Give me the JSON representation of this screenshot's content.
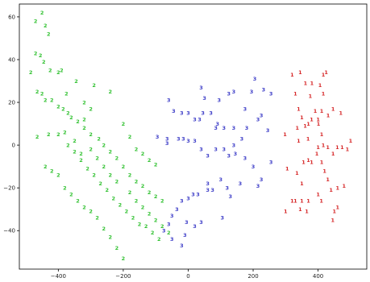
{
  "chart_data": {
    "type": "scatter",
    "title": "",
    "xlabel": "",
    "ylabel": "",
    "xlim": [
      -520,
      550
    ],
    "ylim": [
      -58,
      66
    ],
    "xticks": [
      -400,
      -200,
      0,
      200,
      400
    ],
    "yticks": [
      -40,
      -20,
      0,
      20,
      40,
      60
    ],
    "grid": false,
    "legend": "none",
    "series": [
      {
        "marker": "1",
        "color": "#d62728",
        "points": [
          [
            298,
            5
          ],
          [
            320,
            33
          ],
          [
            330,
            24
          ],
          [
            340,
            17
          ],
          [
            350,
            13
          ],
          [
            370,
            10
          ],
          [
            345,
            34
          ],
          [
            361,
            29
          ],
          [
            381,
            29
          ],
          [
            376,
            23
          ],
          [
            406,
            28
          ],
          [
            416,
            24
          ],
          [
            411,
            16
          ],
          [
            401,
            10
          ],
          [
            431,
            14
          ],
          [
            446,
            17
          ],
          [
            391,
            16
          ],
          [
            360,
            9
          ],
          [
            340,
            2
          ],
          [
            369,
            3
          ],
          [
            400,
            -1
          ],
          [
            411,
            5
          ],
          [
            416,
            0
          ],
          [
            430,
            -1
          ],
          [
            446,
            -4
          ],
          [
            459,
            -1
          ],
          [
            474,
            -1
          ],
          [
            490,
            -2
          ],
          [
            500,
            2
          ],
          [
            470,
            15
          ],
          [
            305,
            -11
          ],
          [
            335,
            -13
          ],
          [
            350,
            -18
          ],
          [
            355,
            -8
          ],
          [
            370,
            -7
          ],
          [
            380,
            -8
          ],
          [
            396,
            -4
          ],
          [
            411,
            -8
          ],
          [
            420,
            -12
          ],
          [
            430,
            -16
          ],
          [
            440,
            -21
          ],
          [
            460,
            -20
          ],
          [
            480,
            -19
          ],
          [
            460,
            -29
          ],
          [
            400,
            -23
          ],
          [
            330,
            -26
          ],
          [
            350,
            -26
          ],
          [
            370,
            -26
          ],
          [
            410,
            -26
          ],
          [
            450,
            -31
          ],
          [
            445,
            -35
          ],
          [
            300,
            -31
          ],
          [
            320,
            -26
          ],
          [
            345,
            -30
          ],
          [
            365,
            -31
          ],
          [
            425,
            34
          ],
          [
            416,
            33
          ],
          [
            400,
            12
          ],
          [
            380,
            12
          ],
          [
            336,
            8
          ]
        ]
      },
      {
        "marker": "3",
        "color": "#3f3fc8",
        "points": [
          [
            40,
            27
          ],
          [
            95,
            21
          ],
          [
            125,
            24
          ],
          [
            140,
            25
          ],
          [
            175,
            17
          ],
          [
            195,
            25
          ],
          [
            205,
            31
          ],
          [
            232,
            26
          ],
          [
            255,
            24
          ],
          [
            215,
            12
          ],
          [
            225,
            14
          ],
          [
            245,
            7
          ],
          [
            180,
            8
          ],
          [
            165,
            3
          ],
          [
            140,
            8
          ],
          [
            110,
            8
          ],
          [
            90,
            10
          ],
          [
            70,
            15
          ],
          [
            50,
            22
          ],
          [
            45,
            15
          ],
          [
            35,
            12
          ],
          [
            20,
            12
          ],
          [
            0,
            15
          ],
          [
            -20,
            15
          ],
          [
            -60,
            21
          ],
          [
            -45,
            16
          ],
          [
            -95,
            4
          ],
          [
            -65,
            3
          ],
          [
            -30,
            3
          ],
          [
            -15,
            3
          ],
          [
            0,
            2
          ],
          [
            20,
            2
          ],
          [
            40,
            -2
          ],
          [
            60,
            -5
          ],
          [
            85,
            -2
          ],
          [
            110,
            -2
          ],
          [
            125,
            -5
          ],
          [
            140,
            0
          ],
          [
            145,
            -4
          ],
          [
            175,
            -6
          ],
          [
            200,
            -10
          ],
          [
            225,
            -16
          ],
          [
            255,
            -8
          ],
          [
            215,
            -19
          ],
          [
            100,
            -16
          ],
          [
            120,
            -20
          ],
          [
            160,
            -18
          ],
          [
            130,
            -24
          ],
          [
            60,
            -18
          ],
          [
            30,
            -23
          ],
          [
            15,
            -23
          ],
          [
            0,
            -25
          ],
          [
            -20,
            -26
          ],
          [
            -35,
            -30
          ],
          [
            -50,
            -33
          ],
          [
            -60,
            -37
          ],
          [
            -75,
            -40
          ],
          [
            -50,
            -44
          ],
          [
            -20,
            -47
          ],
          [
            -10,
            -42
          ],
          [
            -5,
            -36
          ],
          [
            20,
            -38
          ],
          [
            40,
            -36
          ],
          [
            60,
            -21
          ],
          [
            75,
            -21
          ],
          [
            105,
            -34
          ],
          [
            -65,
            1
          ],
          [
            85,
            8
          ]
        ]
      },
      {
        "marker": "2",
        "color": "#33c233",
        "points": [
          [
            -450,
            62
          ],
          [
            -470,
            58
          ],
          [
            -440,
            56
          ],
          [
            -430,
            52
          ],
          [
            -470,
            43
          ],
          [
            -455,
            42
          ],
          [
            -445,
            39
          ],
          [
            -425,
            35
          ],
          [
            -400,
            34
          ],
          [
            -390,
            35
          ],
          [
            -485,
            34
          ],
          [
            -465,
            25
          ],
          [
            -450,
            24
          ],
          [
            -440,
            21
          ],
          [
            -420,
            21
          ],
          [
            -400,
            18
          ],
          [
            -385,
            17
          ],
          [
            -370,
            15
          ],
          [
            -360,
            13
          ],
          [
            -340,
            11
          ],
          [
            -320,
            8
          ],
          [
            -300,
            5
          ],
          [
            -275,
            3
          ],
          [
            -260,
            0
          ],
          [
            -240,
            -3
          ],
          [
            -220,
            -6
          ],
          [
            -200,
            -10
          ],
          [
            -180,
            -14
          ],
          [
            -160,
            -17
          ],
          [
            -140,
            -19
          ],
          [
            -120,
            -22
          ],
          [
            -100,
            -24
          ],
          [
            -80,
            -26
          ],
          [
            -380,
            6
          ],
          [
            -400,
            5
          ],
          [
            -430,
            5
          ],
          [
            -465,
            4
          ],
          [
            -370,
            0
          ],
          [
            -350,
            -3
          ],
          [
            -330,
            -7
          ],
          [
            -310,
            -11
          ],
          [
            -290,
            -14
          ],
          [
            -270,
            -18
          ],
          [
            -250,
            -21
          ],
          [
            -230,
            -25
          ],
          [
            -210,
            -28
          ],
          [
            -190,
            -31
          ],
          [
            -170,
            -34
          ],
          [
            -150,
            -37
          ],
          [
            -130,
            -38
          ],
          [
            -110,
            -41
          ],
          [
            -90,
            -44
          ],
          [
            -380,
            -20
          ],
          [
            -360,
            -23
          ],
          [
            -340,
            -26
          ],
          [
            -320,
            -29
          ],
          [
            -300,
            -31
          ],
          [
            -280,
            -34
          ],
          [
            -260,
            -39
          ],
          [
            -240,
            -43
          ],
          [
            -220,
            -48
          ],
          [
            -200,
            -53
          ],
          [
            -440,
            -10
          ],
          [
            -420,
            -12
          ],
          [
            -400,
            -14
          ],
          [
            -320,
            20
          ],
          [
            -290,
            28
          ],
          [
            -240,
            25
          ],
          [
            -200,
            10
          ],
          [
            -180,
            4
          ],
          [
            -160,
            -2
          ],
          [
            -140,
            -4
          ],
          [
            -120,
            -7
          ],
          [
            -100,
            -9
          ],
          [
            -300,
            -2
          ],
          [
            -280,
            -6
          ],
          [
            -260,
            -10
          ],
          [
            -240,
            -14
          ],
          [
            -220,
            -17
          ],
          [
            -180,
            -22
          ],
          [
            -160,
            -26
          ],
          [
            -140,
            -29
          ],
          [
            -120,
            -32
          ],
          [
            -100,
            -35
          ],
          [
            -80,
            -38
          ],
          [
            -60,
            -41
          ],
          [
            -345,
            30
          ],
          [
            -375,
            24
          ],
          [
            -320,
            12
          ],
          [
            -300,
            17
          ],
          [
            -350,
            2
          ],
          [
            -330,
            -4
          ]
        ]
      }
    ]
  }
}
